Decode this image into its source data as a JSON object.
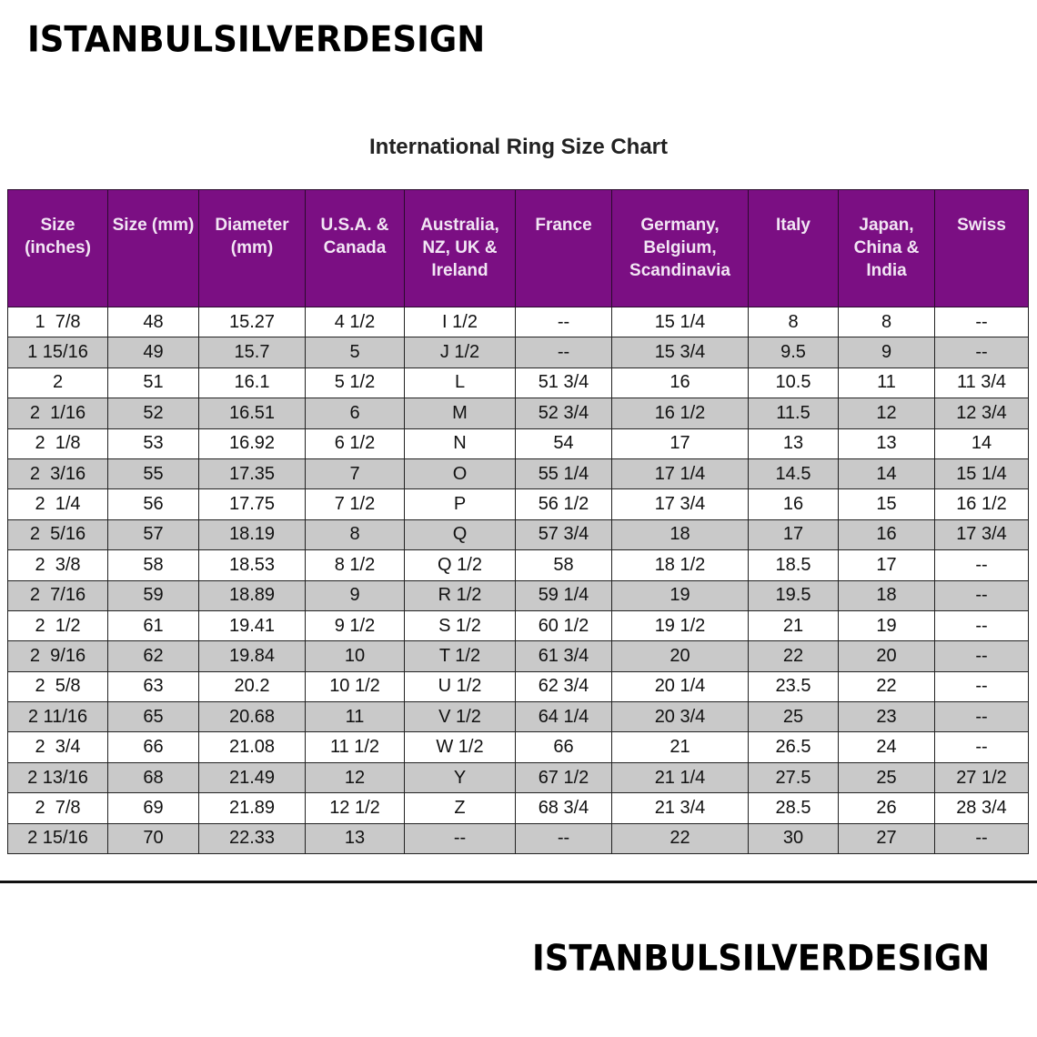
{
  "brand": "ISTANBULSILVERDESIGN",
  "title": "International Ring Size Chart",
  "headers": [
    "Size (inches)",
    "Size (mm)",
    "Diameter (mm)",
    "U.S.A. & Canada",
    "Australia, NZ, UK & Ireland",
    "France",
    "Germany, Belgium, Scandinavia",
    "Italy",
    "Japan, China & India",
    "Swiss"
  ],
  "rows": [
    [
      "1  7/8",
      "48",
      "15.27",
      "4 1/2",
      "I 1/2",
      "--",
      "15 1/4",
      "8",
      "8",
      "--"
    ],
    [
      "1 15/16",
      "49",
      "15.7",
      "5",
      "J 1/2",
      "--",
      "15 3/4",
      "9.5",
      "9",
      "--"
    ],
    [
      "2",
      "51",
      "16.1",
      "5 1/2",
      "L",
      "51 3/4",
      "16",
      "10.5",
      "11",
      "11 3/4"
    ],
    [
      "2  1/16",
      "52",
      "16.51",
      "6",
      "M",
      "52 3/4",
      "16 1/2",
      "11.5",
      "12",
      "12 3/4"
    ],
    [
      "2  1/8",
      "53",
      "16.92",
      "6 1/2",
      "N",
      "54",
      "17",
      "13",
      "13",
      "14"
    ],
    [
      "2  3/16",
      "55",
      "17.35",
      "7",
      "O",
      "55 1/4",
      "17 1/4",
      "14.5",
      "14",
      "15 1/4"
    ],
    [
      "2  1/4",
      "56",
      "17.75",
      "7 1/2",
      "P",
      "56 1/2",
      "17 3/4",
      "16",
      "15",
      "16 1/2"
    ],
    [
      "2  5/16",
      "57",
      "18.19",
      "8",
      "Q",
      "57 3/4",
      "18",
      "17",
      "16",
      "17 3/4"
    ],
    [
      "2  3/8",
      "58",
      "18.53",
      "8 1/2",
      "Q 1/2",
      "58",
      "18 1/2",
      "18.5",
      "17",
      "--"
    ],
    [
      "2  7/16",
      "59",
      "18.89",
      "9",
      "R 1/2",
      "59 1/4",
      "19",
      "19.5",
      "18",
      "--"
    ],
    [
      "2  1/2",
      "61",
      "19.41",
      "9 1/2",
      "S 1/2",
      "60 1/2",
      "19 1/2",
      "21",
      "19",
      "--"
    ],
    [
      "2  9/16",
      "62",
      "19.84",
      "10",
      "T 1/2",
      "61 3/4",
      "20",
      "22",
      "20",
      "--"
    ],
    [
      "2  5/8",
      "63",
      "20.2",
      "10 1/2",
      "U 1/2",
      "62 3/4",
      "20 1/4",
      "23.5",
      "22",
      "--"
    ],
    [
      "2 11/16",
      "65",
      "20.68",
      "11",
      "V 1/2",
      "64 1/4",
      "20 3/4",
      "25",
      "23",
      "--"
    ],
    [
      "2  3/4",
      "66",
      "21.08",
      "11 1/2",
      "W 1/2",
      "66",
      "21",
      "26.5",
      "24",
      "--"
    ],
    [
      "2 13/16",
      "68",
      "21.49",
      "12",
      "Y",
      "67 1/2",
      "21 1/4",
      "27.5",
      "25",
      "27 1/2"
    ],
    [
      "2  7/8",
      "69",
      "21.89",
      "12 1/2",
      "Z",
      "68 3/4",
      "21 3/4",
      "28.5",
      "26",
      "28 3/4"
    ],
    [
      "2 15/16",
      "70",
      "22.33",
      "13",
      "--",
      "--",
      "22",
      "30",
      "27",
      "--"
    ]
  ],
  "colors": {
    "header": "#7b0f83",
    "alt_row": "#c9c9c9"
  }
}
